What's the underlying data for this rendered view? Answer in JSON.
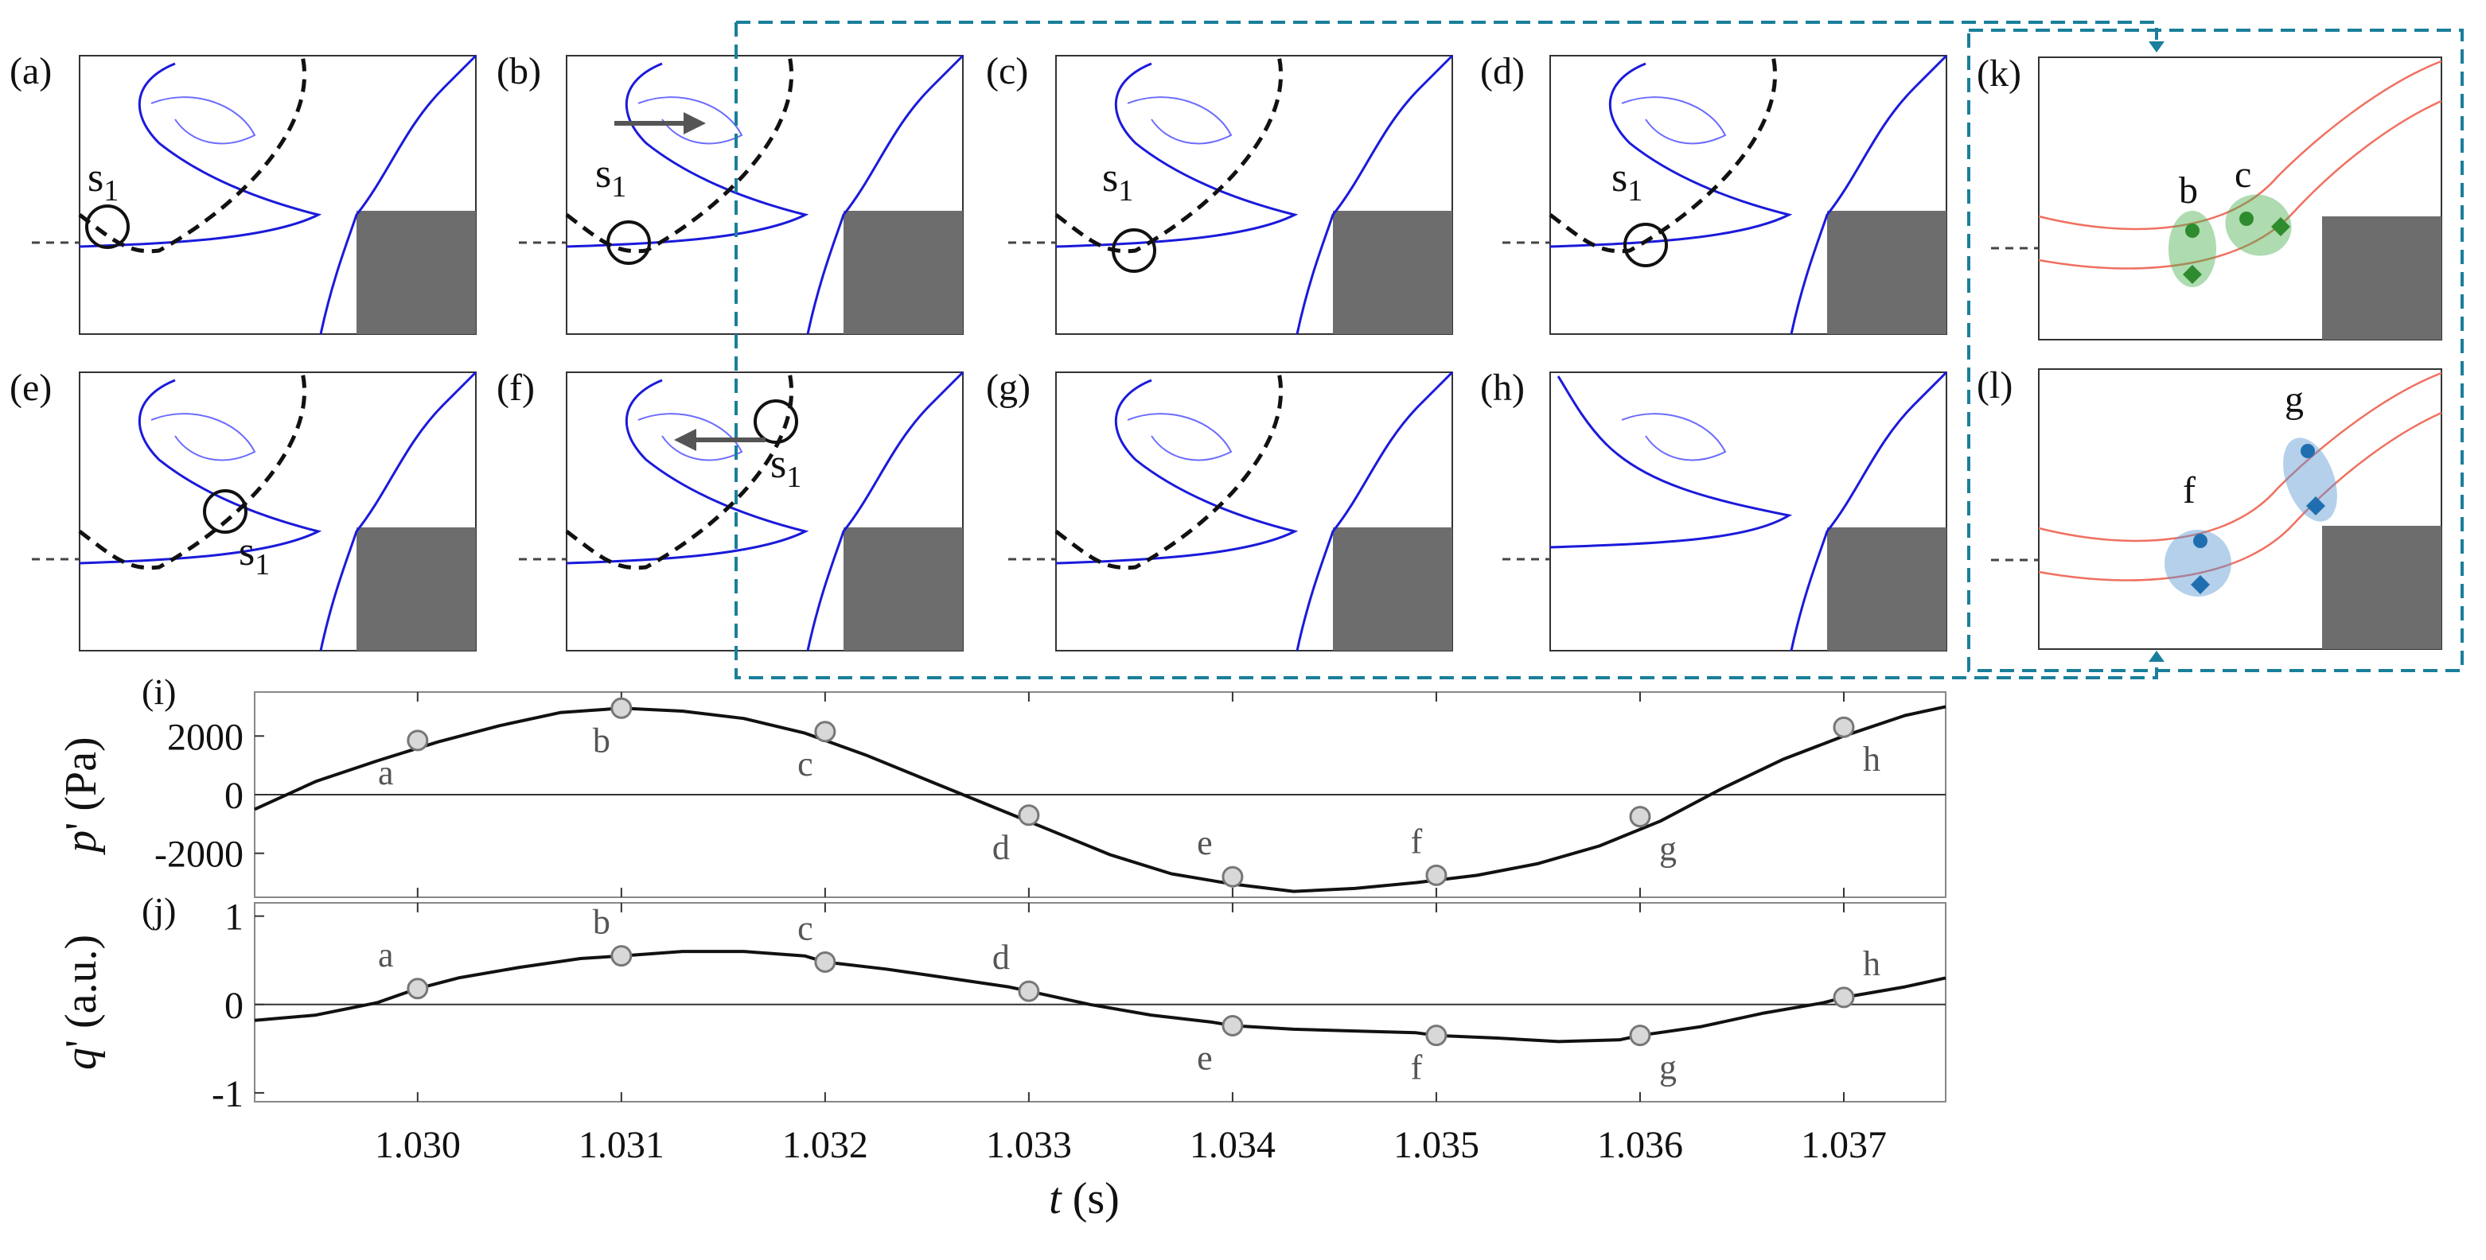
{
  "panels": [
    {
      "label": "(a)",
      "s": "s",
      "sub": "1",
      "circle": [
        135,
        285
      ],
      "slab": [
        110,
        240
      ],
      "arrow": null,
      "curve": true
    },
    {
      "label": "(b)",
      "s": "s",
      "sub": "1",
      "circle": [
        790,
        305
      ],
      "slab": [
        748,
        235
      ],
      "arrow": "right",
      "curve": true
    },
    {
      "label": "(c)",
      "s": "s",
      "sub": "1",
      "circle": [
        1425,
        315
      ],
      "slab": [
        1385,
        240
      ],
      "arrow": null,
      "curve": true
    },
    {
      "label": "(d)",
      "s": "s",
      "sub": "1",
      "circle": [
        2068,
        308
      ],
      "slab": [
        2025,
        240
      ],
      "arrow": null,
      "curve": true
    },
    {
      "label": "(e)",
      "s": "s",
      "sub": "1",
      "circle": [
        283,
        643
      ],
      "slab": [
        300,
        710
      ],
      "arrow": null,
      "curve": true
    },
    {
      "label": "(f)",
      "s": "s",
      "sub": "1",
      "circle": [
        975,
        530
      ],
      "slab": [
        968,
        600
      ],
      "arrow": "left",
      "curve": true
    },
    {
      "label": "(g)",
      "s": "",
      "sub": "",
      "circle": null,
      "slab": null,
      "arrow": null,
      "curve": true
    },
    {
      "label": "(h)",
      "s": "",
      "sub": "",
      "circle": null,
      "slab": null,
      "arrow": null,
      "curve": false
    }
  ],
  "zoom_panels": [
    {
      "label": "(k)",
      "color": "#2e8b2e",
      "fill": "rgba(76,175,80,0.45)",
      "groups": [
        {
          "name": "b"
        },
        {
          "name": "c"
        }
      ]
    },
    {
      "label": "(l)",
      "color": "#1f6fb0",
      "fill": "rgba(90,150,210,0.45)",
      "groups": [
        {
          "name": "f"
        },
        {
          "name": "g"
        }
      ]
    }
  ],
  "chart_data": [
    {
      "type": "line",
      "panel": "(i)",
      "ylabel": "p' (Pa)",
      "ylabel_main": "p",
      "ylabel_unit": " (Pa)",
      "xlim": [
        1.0292,
        1.0375
      ],
      "ylim": [
        -3500,
        3500
      ],
      "yticks": [
        -2000,
        0,
        2000
      ],
      "ytick_labels": [
        "-2000",
        "0",
        "2000"
      ],
      "series": [
        {
          "x": [
            1.0292,
            1.0295,
            1.0298,
            1.0301,
            1.0304,
            1.0307,
            1.031,
            1.0313,
            1.0316,
            1.0319,
            1.0322,
            1.0325,
            1.0328,
            1.0331,
            1.0334,
            1.0337,
            1.034,
            1.0343,
            1.0346,
            1.0349,
            1.0352,
            1.0355,
            1.0358,
            1.0361,
            1.0364,
            1.0367,
            1.037,
            1.0373,
            1.0375
          ],
          "y": [
            -500,
            450,
            1150,
            1800,
            2350,
            2800,
            2950,
            2850,
            2600,
            2100,
            1350,
            500,
            -350,
            -1200,
            -2050,
            -2700,
            -3050,
            -3300,
            -3200,
            -3000,
            -2750,
            -2350,
            -1750,
            -900,
            200,
            1200,
            2000,
            2700,
            3000
          ]
        }
      ],
      "points": [
        {
          "name": "a",
          "x": 1.03,
          "y": 1850
        },
        {
          "name": "b",
          "x": 1.031,
          "y": 2950
        },
        {
          "name": "c",
          "x": 1.032,
          "y": 2150
        },
        {
          "name": "d",
          "x": 1.033,
          "y": -700
        },
        {
          "name": "e",
          "x": 1.034,
          "y": -2800
        },
        {
          "name": "f",
          "x": 1.035,
          "y": -2750
        },
        {
          "name": "g",
          "x": 1.036,
          "y": -750
        },
        {
          "name": "h",
          "x": 1.037,
          "y": 2300
        }
      ]
    },
    {
      "type": "line",
      "panel": "(j)",
      "ylabel": "q' (a.u.)",
      "ylabel_main": "q",
      "ylabel_unit": " (a.u.)",
      "xlabel": "t (s)",
      "xlabel_main": "t",
      "xlabel_unit": " (s)",
      "xlim": [
        1.0292,
        1.0375
      ],
      "ylim": [
        -1.1,
        1.15
      ],
      "yticks": [
        -1,
        0,
        1
      ],
      "ytick_labels": [
        "-1",
        "0",
        "1"
      ],
      "xticks": [
        1.03,
        1.031,
        1.032,
        1.033,
        1.034,
        1.035,
        1.036,
        1.037
      ],
      "xtick_labels": [
        "1.030",
        "1.031",
        "1.032",
        "1.033",
        "1.034",
        "1.035",
        "1.036",
        "1.037"
      ],
      "series": [
        {
          "x": [
            1.0292,
            1.0295,
            1.0298,
            1.03,
            1.0302,
            1.0305,
            1.0308,
            1.031,
            1.0313,
            1.0316,
            1.0319,
            1.032,
            1.0323,
            1.0326,
            1.0329,
            1.033,
            1.0333,
            1.0336,
            1.0339,
            1.034,
            1.0343,
            1.0346,
            1.0349,
            1.035,
            1.0353,
            1.0356,
            1.0359,
            1.036,
            1.0363,
            1.0366,
            1.0369,
            1.037,
            1.0373,
            1.0375
          ],
          "y": [
            -0.18,
            -0.12,
            0.02,
            0.18,
            0.3,
            0.42,
            0.52,
            0.55,
            0.6,
            0.6,
            0.55,
            0.48,
            0.4,
            0.3,
            0.2,
            0.15,
            0.0,
            -0.12,
            -0.2,
            -0.24,
            -0.28,
            -0.3,
            -0.32,
            -0.35,
            -0.38,
            -0.42,
            -0.4,
            -0.35,
            -0.25,
            -0.1,
            0.02,
            0.08,
            0.2,
            0.3
          ]
        }
      ],
      "points": [
        {
          "name": "a",
          "x": 1.03,
          "y": 0.18
        },
        {
          "name": "b",
          "x": 1.031,
          "y": 0.55
        },
        {
          "name": "c",
          "x": 1.032,
          "y": 0.48
        },
        {
          "name": "d",
          "x": 1.033,
          "y": 0.15
        },
        {
          "name": "e",
          "x": 1.034,
          "y": -0.24
        },
        {
          "name": "f",
          "x": 1.035,
          "y": -0.35
        },
        {
          "name": "g",
          "x": 1.036,
          "y": -0.35
        },
        {
          "name": "h",
          "x": 1.037,
          "y": 0.08
        }
      ]
    }
  ]
}
